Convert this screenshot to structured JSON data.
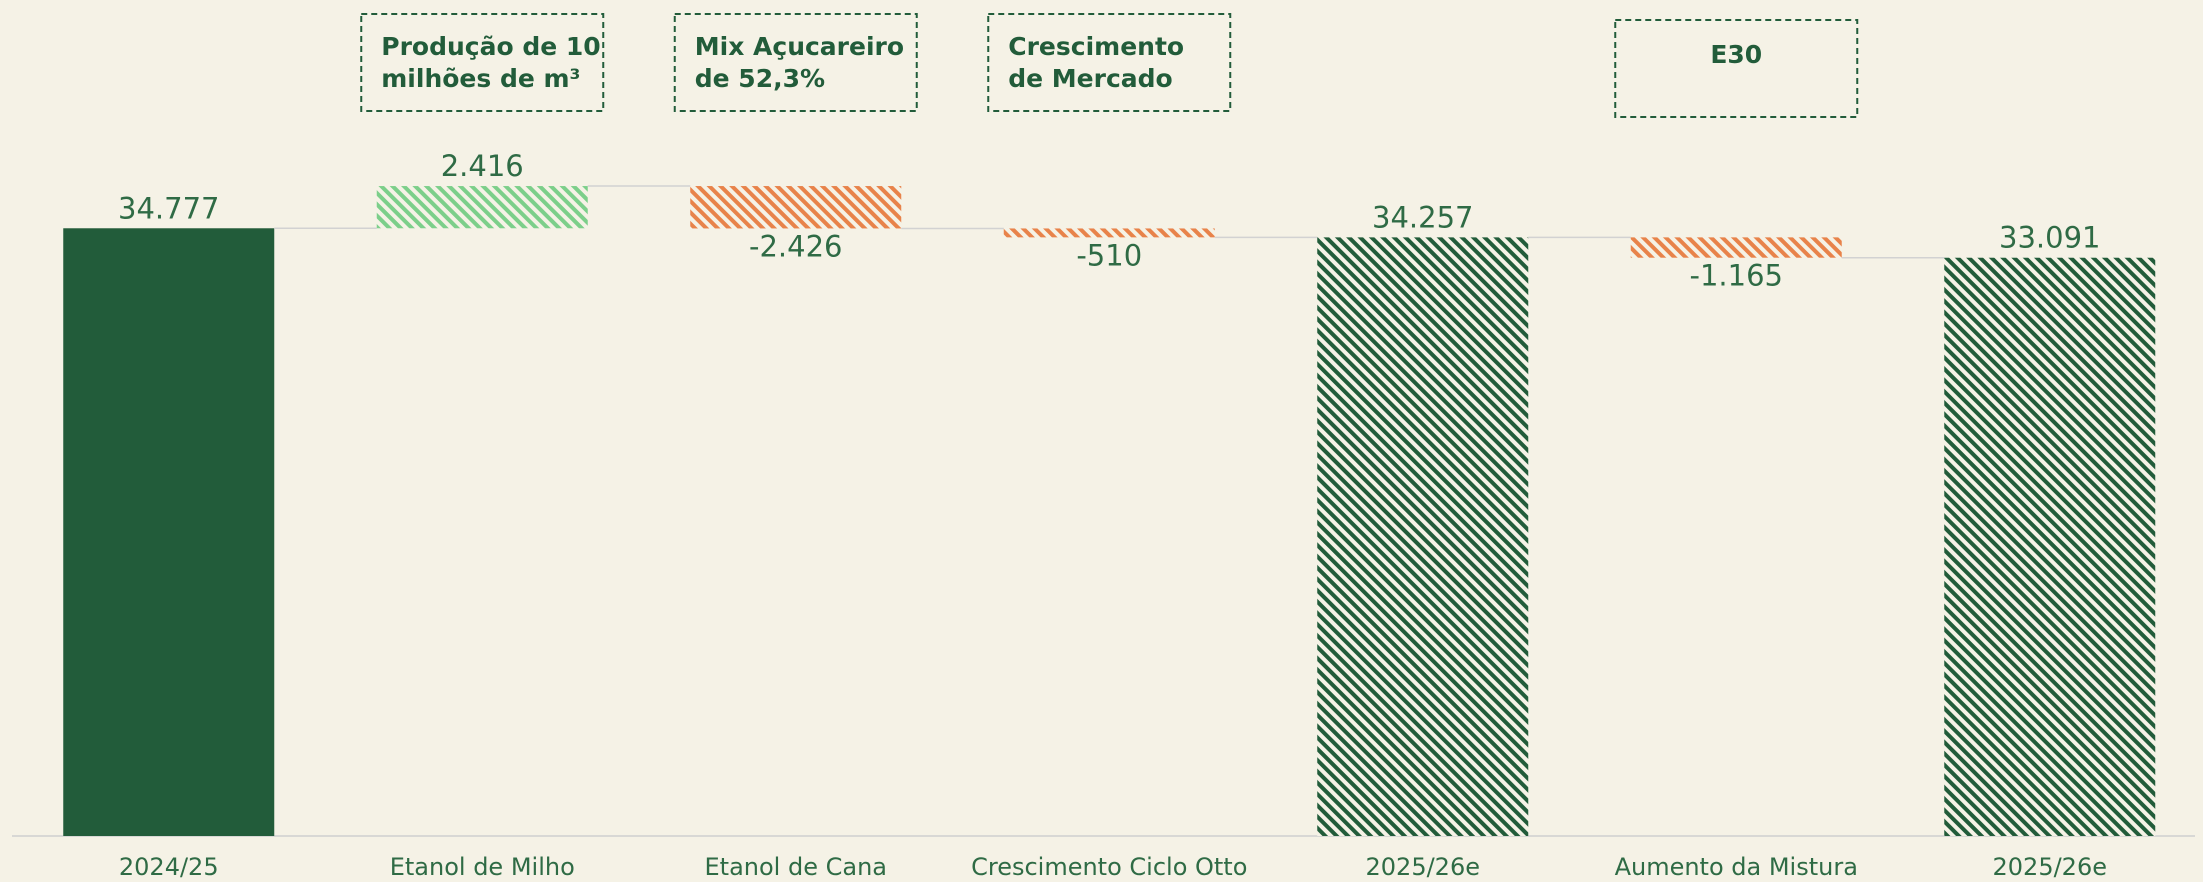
{
  "chart_data": {
    "type": "waterfall",
    "categories": [
      "2024/25",
      "Etanol de Milho",
      "Etanol de Cana",
      "Crescimento Ciclo Otto",
      "2025/26e",
      "Aumento da Mistura",
      "2025/26e"
    ],
    "values": [
      34777,
      2416,
      -2426,
      -510,
      34257,
      -1165,
      33091
    ],
    "value_labels": [
      "34.777",
      "2.416",
      "-2.426",
      "-510",
      "34.257",
      "-1.165",
      "33.091"
    ],
    "measure": [
      "total",
      "relative",
      "relative",
      "relative",
      "total",
      "relative",
      "total"
    ],
    "colors": [
      "#225c3a",
      "#7ccf8a",
      "#e8834a",
      "#e8834a",
      "#225c3a",
      "#e8834a",
      "#225c3a"
    ],
    "hatched": [
      false,
      true,
      true,
      true,
      true,
      true,
      true
    ],
    "ylim": [
      0,
      40000
    ],
    "annotations": [
      {
        "category": "Etanol de Milho",
        "lines": [
          "Produção de 10",
          "milhões de m³"
        ]
      },
      {
        "category": "Etanol de Cana",
        "lines": [
          "Mix Açucareiro",
          "de 52,3%"
        ]
      },
      {
        "category": "Crescimento Ciclo Otto",
        "lines": [
          "Crescimento",
          "de Mercado"
        ]
      },
      {
        "category": "Aumento da Mistura",
        "lines": [
          "E30"
        ]
      }
    ]
  }
}
